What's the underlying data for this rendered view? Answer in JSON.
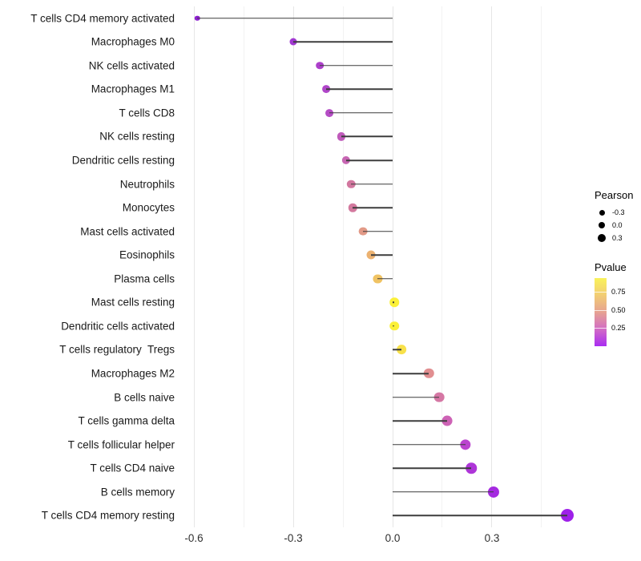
{
  "chart_data": {
    "type": "lollipop",
    "orientation": "horizontal",
    "title": "",
    "x_axis": {
      "tick_labels": [
        "-0.6",
        "-0.3",
        "0.0",
        "0.3"
      ],
      "tick_values": [
        -0.6,
        -0.3,
        0.0,
        0.3
      ],
      "minor_tick_values": [
        -0.45,
        -0.15,
        0.15,
        0.45
      ],
      "range": [
        -0.648,
        0.59
      ],
      "grid": "on"
    },
    "rows": [
      {
        "label": "T cells CD4 memory activated",
        "pearson": -0.59,
        "color": "#8d1fd0"
      },
      {
        "label": "Macrophages M0",
        "pearson": -0.3,
        "color": "#a138d2"
      },
      {
        "label": "NK cells activated",
        "pearson": -0.22,
        "color": "#ad40cb"
      },
      {
        "label": "Macrophages M1",
        "pearson": -0.2,
        "color": "#b046c9"
      },
      {
        "label": "T cells CD8",
        "pearson": -0.19,
        "color": "#b54cc5"
      },
      {
        "label": "NK cells resting",
        "pearson": -0.155,
        "color": "#c05abb"
      },
      {
        "label": "Dendritic cells resting",
        "pearson": -0.14,
        "color": "#c766b3"
      },
      {
        "label": "Neutrophils",
        "pearson": -0.125,
        "color": "#d2779f"
      },
      {
        "label": "Monocytes",
        "pearson": -0.12,
        "color": "#d3799e"
      },
      {
        "label": "Mast cells activated",
        "pearson": -0.09,
        "color": "#e29a87"
      },
      {
        "label": "Eosinophils",
        "pearson": -0.065,
        "color": "#ecb271"
      },
      {
        "label": "Plasma cells",
        "pearson": -0.045,
        "color": "#f0c363"
      },
      {
        "label": "Mast cells resting",
        "pearson": 0.005,
        "color": "#fbf038"
      },
      {
        "label": "Dendritic cells activated",
        "pearson": 0.005,
        "color": "#fbf038"
      },
      {
        "label": "T cells regulatory  Tregs",
        "pearson": 0.027,
        "color": "#f8e14a"
      },
      {
        "label": "Macrophages M2",
        "pearson": 0.11,
        "color": "#e18e90"
      },
      {
        "label": "B cells naive",
        "pearson": 0.14,
        "color": "#d577a4"
      },
      {
        "label": "T cells gamma delta",
        "pearson": 0.165,
        "color": "#cd62b5"
      },
      {
        "label": "T cells follicular helper",
        "pearson": 0.22,
        "color": "#bb44cf"
      },
      {
        "label": "T cells CD4 naive",
        "pearson": 0.238,
        "color": "#ae35d8"
      },
      {
        "label": "B cells memory",
        "pearson": 0.305,
        "color": "#a52ae0"
      },
      {
        "label": "T cells CD4 memory resting",
        "pearson": 0.527,
        "color": "#9e20e9"
      }
    ],
    "legend_size": {
      "title": "Pearson",
      "dot_color": "#000000",
      "entries": [
        {
          "label": "-0.3",
          "diameter": 7
        },
        {
          "label": "0.0",
          "diameter": 8.5
        },
        {
          "label": "0.3",
          "diameter": 10
        }
      ]
    },
    "legend_color": {
      "title": "Pvalue",
      "labels": [
        "0.75",
        "0.50",
        "0.25"
      ],
      "label_offsets": [
        17,
        40,
        62
      ],
      "gradient": [
        "#f9f25a",
        "#f2cd74",
        "#e6a292",
        "#d26cc5",
        "#a92df2"
      ]
    }
  }
}
